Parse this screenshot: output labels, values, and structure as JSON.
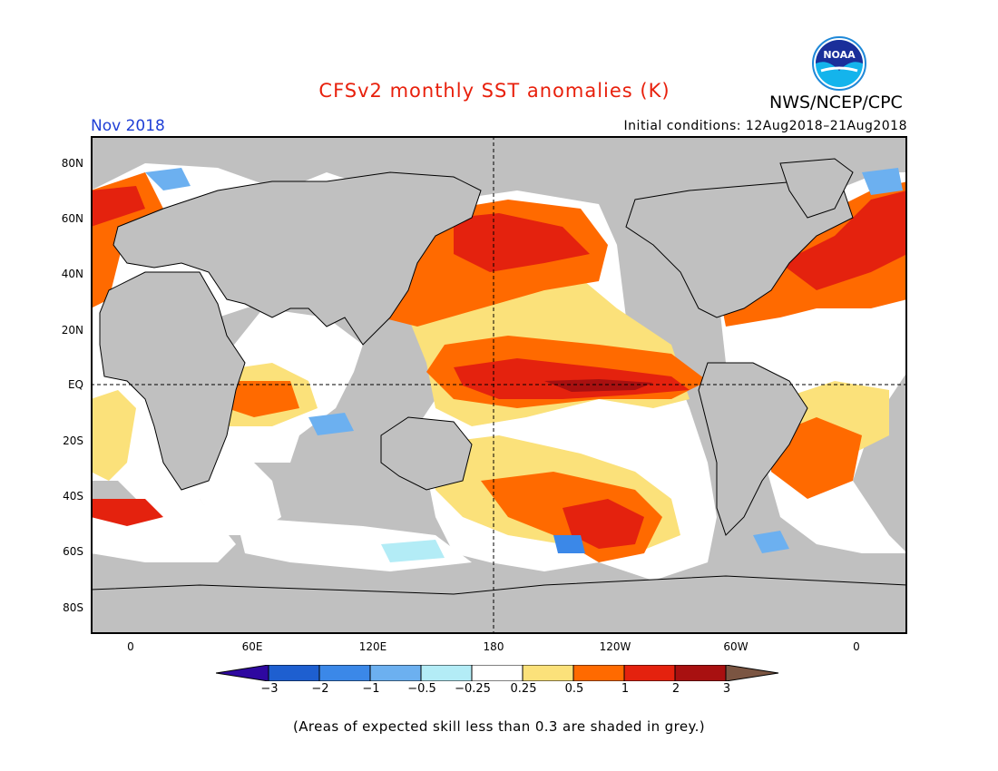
{
  "title": "CFSv2 monthly SST anomalies (K)",
  "agency": "NWS/NCEP/CPC",
  "logo_text": "NOAA",
  "forecast_month": "Nov 2018",
  "initial_conditions": "Initial conditions: 12Aug2018–21Aug2018",
  "lat_labels": [
    "80N",
    "60N",
    "40N",
    "20N",
    "EQ",
    "20S",
    "40S",
    "60S",
    "80S"
  ],
  "lon_labels": [
    "0",
    "60E",
    "120E",
    "180",
    "120W",
    "60W",
    "0"
  ],
  "colorbar": {
    "labels": [
      "−3",
      "−2",
      "−1",
      "−0.5",
      "−0.25",
      "0.25",
      "0.5",
      "1",
      "2",
      "3"
    ],
    "colors": [
      "#2e08a0",
      "#1e5fd0",
      "#3b88e8",
      "#6cb0f0",
      "#b3ecf6",
      "#ffffff",
      "#fbe17a",
      "#ff6a00",
      "#e4220e",
      "#a81010",
      "#7b5542"
    ]
  },
  "colors": {
    "land": "#c0c0c0",
    "title": "#e8200c",
    "month": "#1f3fd6"
  },
  "footnote": "(Areas of expected skill less than 0.3 are shaded in grey.)"
}
